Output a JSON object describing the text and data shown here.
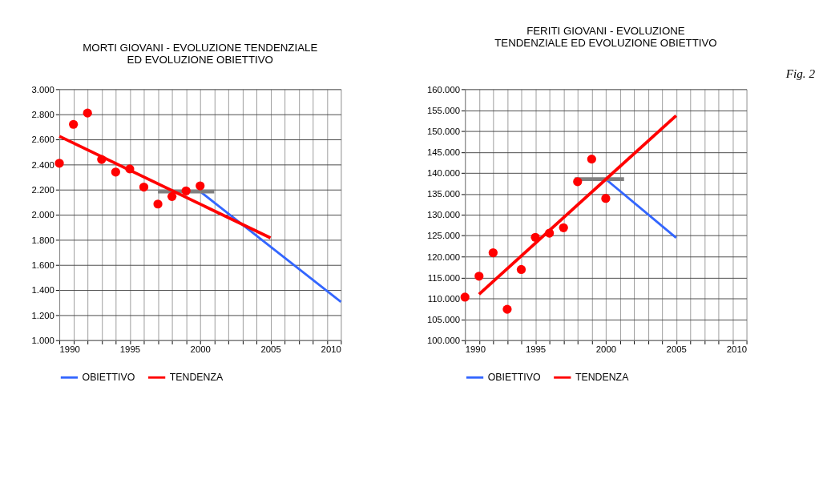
{
  "chart_data": [
    {
      "type": "scatter",
      "title": "MORTI GIOVANI - EVOLUZIONE TENDENZIALE\nED EVOLUZIONE OBIETTIVO",
      "grid": true,
      "legend": "bottom",
      "xlim": [
        1990,
        2010
      ],
      "xticks": [
        1990,
        {
          "value": 1991,
          "label": null
        },
        {
          "value": 1992,
          "label": null
        },
        {
          "value": 1993,
          "label": null
        },
        {
          "value": 1994,
          "label": null
        },
        1995,
        {
          "value": 1996,
          "label": null
        },
        {
          "value": 1997,
          "label": null
        },
        {
          "value": 1998,
          "label": null
        },
        {
          "value": 1999,
          "label": null
        },
        2000,
        {
          "value": 2001,
          "label": null
        },
        {
          "value": 2002,
          "label": null
        },
        {
          "value": 2003,
          "label": null
        },
        {
          "value": 2004,
          "label": null
        },
        2005,
        {
          "value": 2006,
          "label": null
        },
        {
          "value": 2007,
          "label": null
        },
        {
          "value": 2008,
          "label": null
        },
        {
          "value": 2009,
          "label": null
        },
        2010
      ],
      "ylim": [
        1000,
        3000
      ],
      "yticks": [
        {
          "value": 1000,
          "label": "1.000"
        },
        {
          "value": 1200,
          "label": "1.200"
        },
        {
          "value": 1400,
          "label": "1.400"
        },
        {
          "value": 1600,
          "label": "1.600"
        },
        {
          "value": 1800,
          "label": "1.800"
        },
        {
          "value": 2000,
          "label": "2.000"
        },
        {
          "value": 2200,
          "label": "2.200"
        },
        {
          "value": 2400,
          "label": "2.400"
        },
        {
          "value": 2600,
          "label": "2.600"
        },
        {
          "value": 2800,
          "label": "2.800"
        },
        {
          "value": 3000,
          "label": "3.000"
        }
      ],
      "series": [
        {
          "type": "line",
          "name": "OBIETTIVO",
          "color": "#3366ff",
          "x": [
            2000,
            2010
          ],
          "values": [
            2185,
            1305
          ]
        },
        {
          "type": "line",
          "color": "#808080",
          "x": [
            1997,
            2001
          ],
          "values": [
            2185,
            2185
          ]
        },
        {
          "type": "line",
          "name": "TENDENZA",
          "color": "#ff0000",
          "x": [
            1990,
            2005
          ],
          "values": [
            2625,
            1815
          ]
        },
        {
          "color": "#ff0000",
          "marker": "circle",
          "x": [
            1990,
            1991,
            1992,
            1993,
            1994,
            1995,
            1996,
            1997,
            1998,
            1999,
            2000
          ],
          "values": [
            2410,
            2720,
            2810,
            2440,
            2340,
            2365,
            2220,
            2085,
            2145,
            2190,
            2230
          ]
        }
      ]
    },
    {
      "type": "scatter",
      "title": "FERITI GIOVANI - EVOLUZIONE\nTENDENZIALE ED EVOLUZIONE OBIETTIVO",
      "grid": true,
      "legend": "bottom",
      "annotations": [
        "Fig. 2"
      ],
      "xlim": [
        1990,
        2010
      ],
      "xticks": [
        1990,
        {
          "value": 1991,
          "label": null
        },
        {
          "value": 1992,
          "label": null
        },
        {
          "value": 1993,
          "label": null
        },
        {
          "value": 1994,
          "label": null
        },
        1995,
        {
          "value": 1996,
          "label": null
        },
        {
          "value": 1997,
          "label": null
        },
        {
          "value": 1998,
          "label": null
        },
        {
          "value": 1999,
          "label": null
        },
        2000,
        {
          "value": 2001,
          "label": null
        },
        {
          "value": 2002,
          "label": null
        },
        {
          "value": 2003,
          "label": null
        },
        {
          "value": 2004,
          "label": null
        },
        2005,
        {
          "value": 2006,
          "label": null
        },
        {
          "value": 2007,
          "label": null
        },
        {
          "value": 2008,
          "label": null
        },
        {
          "value": 2009,
          "label": null
        },
        2010
      ],
      "ylim": [
        100000,
        160000
      ],
      "yticks": [
        {
          "value": 100000,
          "label": "100.000"
        },
        {
          "value": 105000,
          "label": "105.000"
        },
        {
          "value": 110000,
          "label": "110.000"
        },
        {
          "value": 115000,
          "label": "115.000"
        },
        {
          "value": 120000,
          "label": "120.000"
        },
        {
          "value": 125000,
          "label": "125.000"
        },
        {
          "value": 130000,
          "label": "130.000"
        },
        {
          "value": 135000,
          "label": "135.000"
        },
        {
          "value": 140000,
          "label": "140.000"
        },
        {
          "value": 145000,
          "label": "145.000"
        },
        {
          "value": 150000,
          "label": "150.000"
        },
        {
          "value": 155000,
          "label": "155.000"
        },
        {
          "value": 160000,
          "label": "160.000"
        }
      ],
      "series": [
        {
          "type": "line",
          "name": "OBIETTIVO",
          "color": "#3366ff",
          "x": [
            2000,
            2005
          ],
          "values": [
            138500,
            124500
          ]
        },
        {
          "type": "line",
          "color": "#808080",
          "x": [
            1997.8,
            2001.3
          ],
          "values": [
            138500,
            138500
          ]
        },
        {
          "type": "line",
          "name": "TENDENZA",
          "color": "#ff0000",
          "x": [
            1991,
            2005
          ],
          "values": [
            111000,
            153700
          ]
        },
        {
          "color": "#ff0000",
          "marker": "circle",
          "x": [
            1990,
            1991,
            1992,
            1993,
            1994,
            1995,
            1996,
            1997,
            1998,
            1999,
            2000
          ],
          "values": [
            110300,
            115300,
            120900,
            107400,
            116900,
            124600,
            125600,
            126900,
            137900,
            143300,
            133900
          ]
        }
      ]
    }
  ]
}
